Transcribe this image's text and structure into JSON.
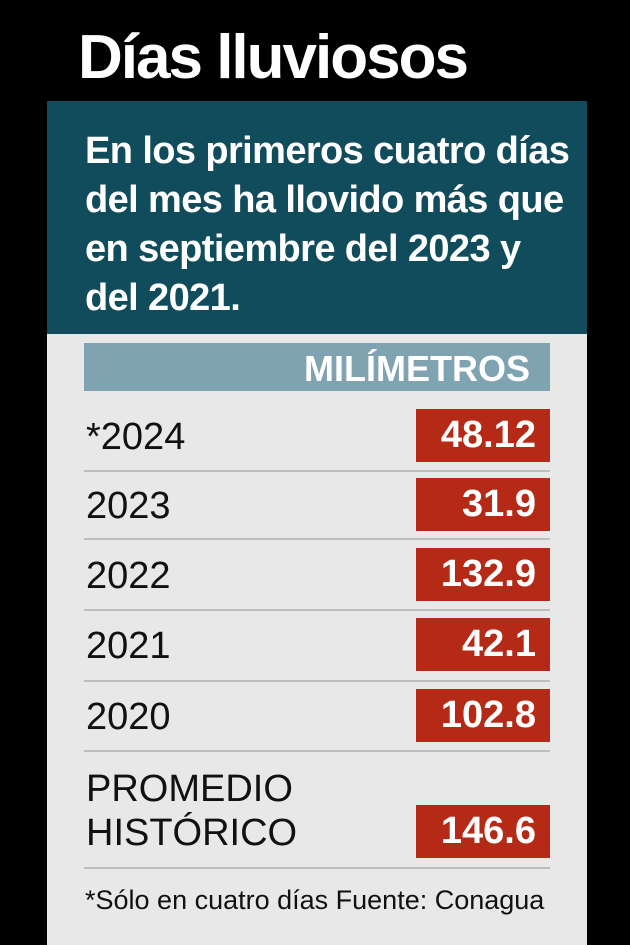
{
  "title": "Días lluviosos",
  "subtitle": "En los primeros cuatro días del mes ha llovido más que en septiembre del 2023 y del 2021.",
  "column_header": "MILÍMETROS",
  "footnote": "*Sólo en cuatro días Fuente: Conagua",
  "colors": {
    "background": "#000000",
    "subtitle_bg": "#114c5d",
    "header_bg": "#7fa3b0",
    "value_bg": "#b42a17",
    "panel_bg": "#e8e8e8"
  },
  "chart_data": {
    "type": "table",
    "title": "Días lluviosos",
    "subtitle": "En los primeros cuatro días del mes ha llovido más que en septiembre del 2023 y del 2021.",
    "column": "MILÍMETROS",
    "rows": [
      {
        "label": "*2024",
        "value": "48.12"
      },
      {
        "label": "2023",
        "value": "31.9"
      },
      {
        "label": "2022",
        "value": "132.9"
      },
      {
        "label": "2021",
        "value": "42.1"
      },
      {
        "label": "2020",
        "value": "102.8"
      },
      {
        "label_lines": [
          "PROMEDIO",
          "HISTÓRICO"
        ],
        "value": "146.6"
      }
    ]
  }
}
